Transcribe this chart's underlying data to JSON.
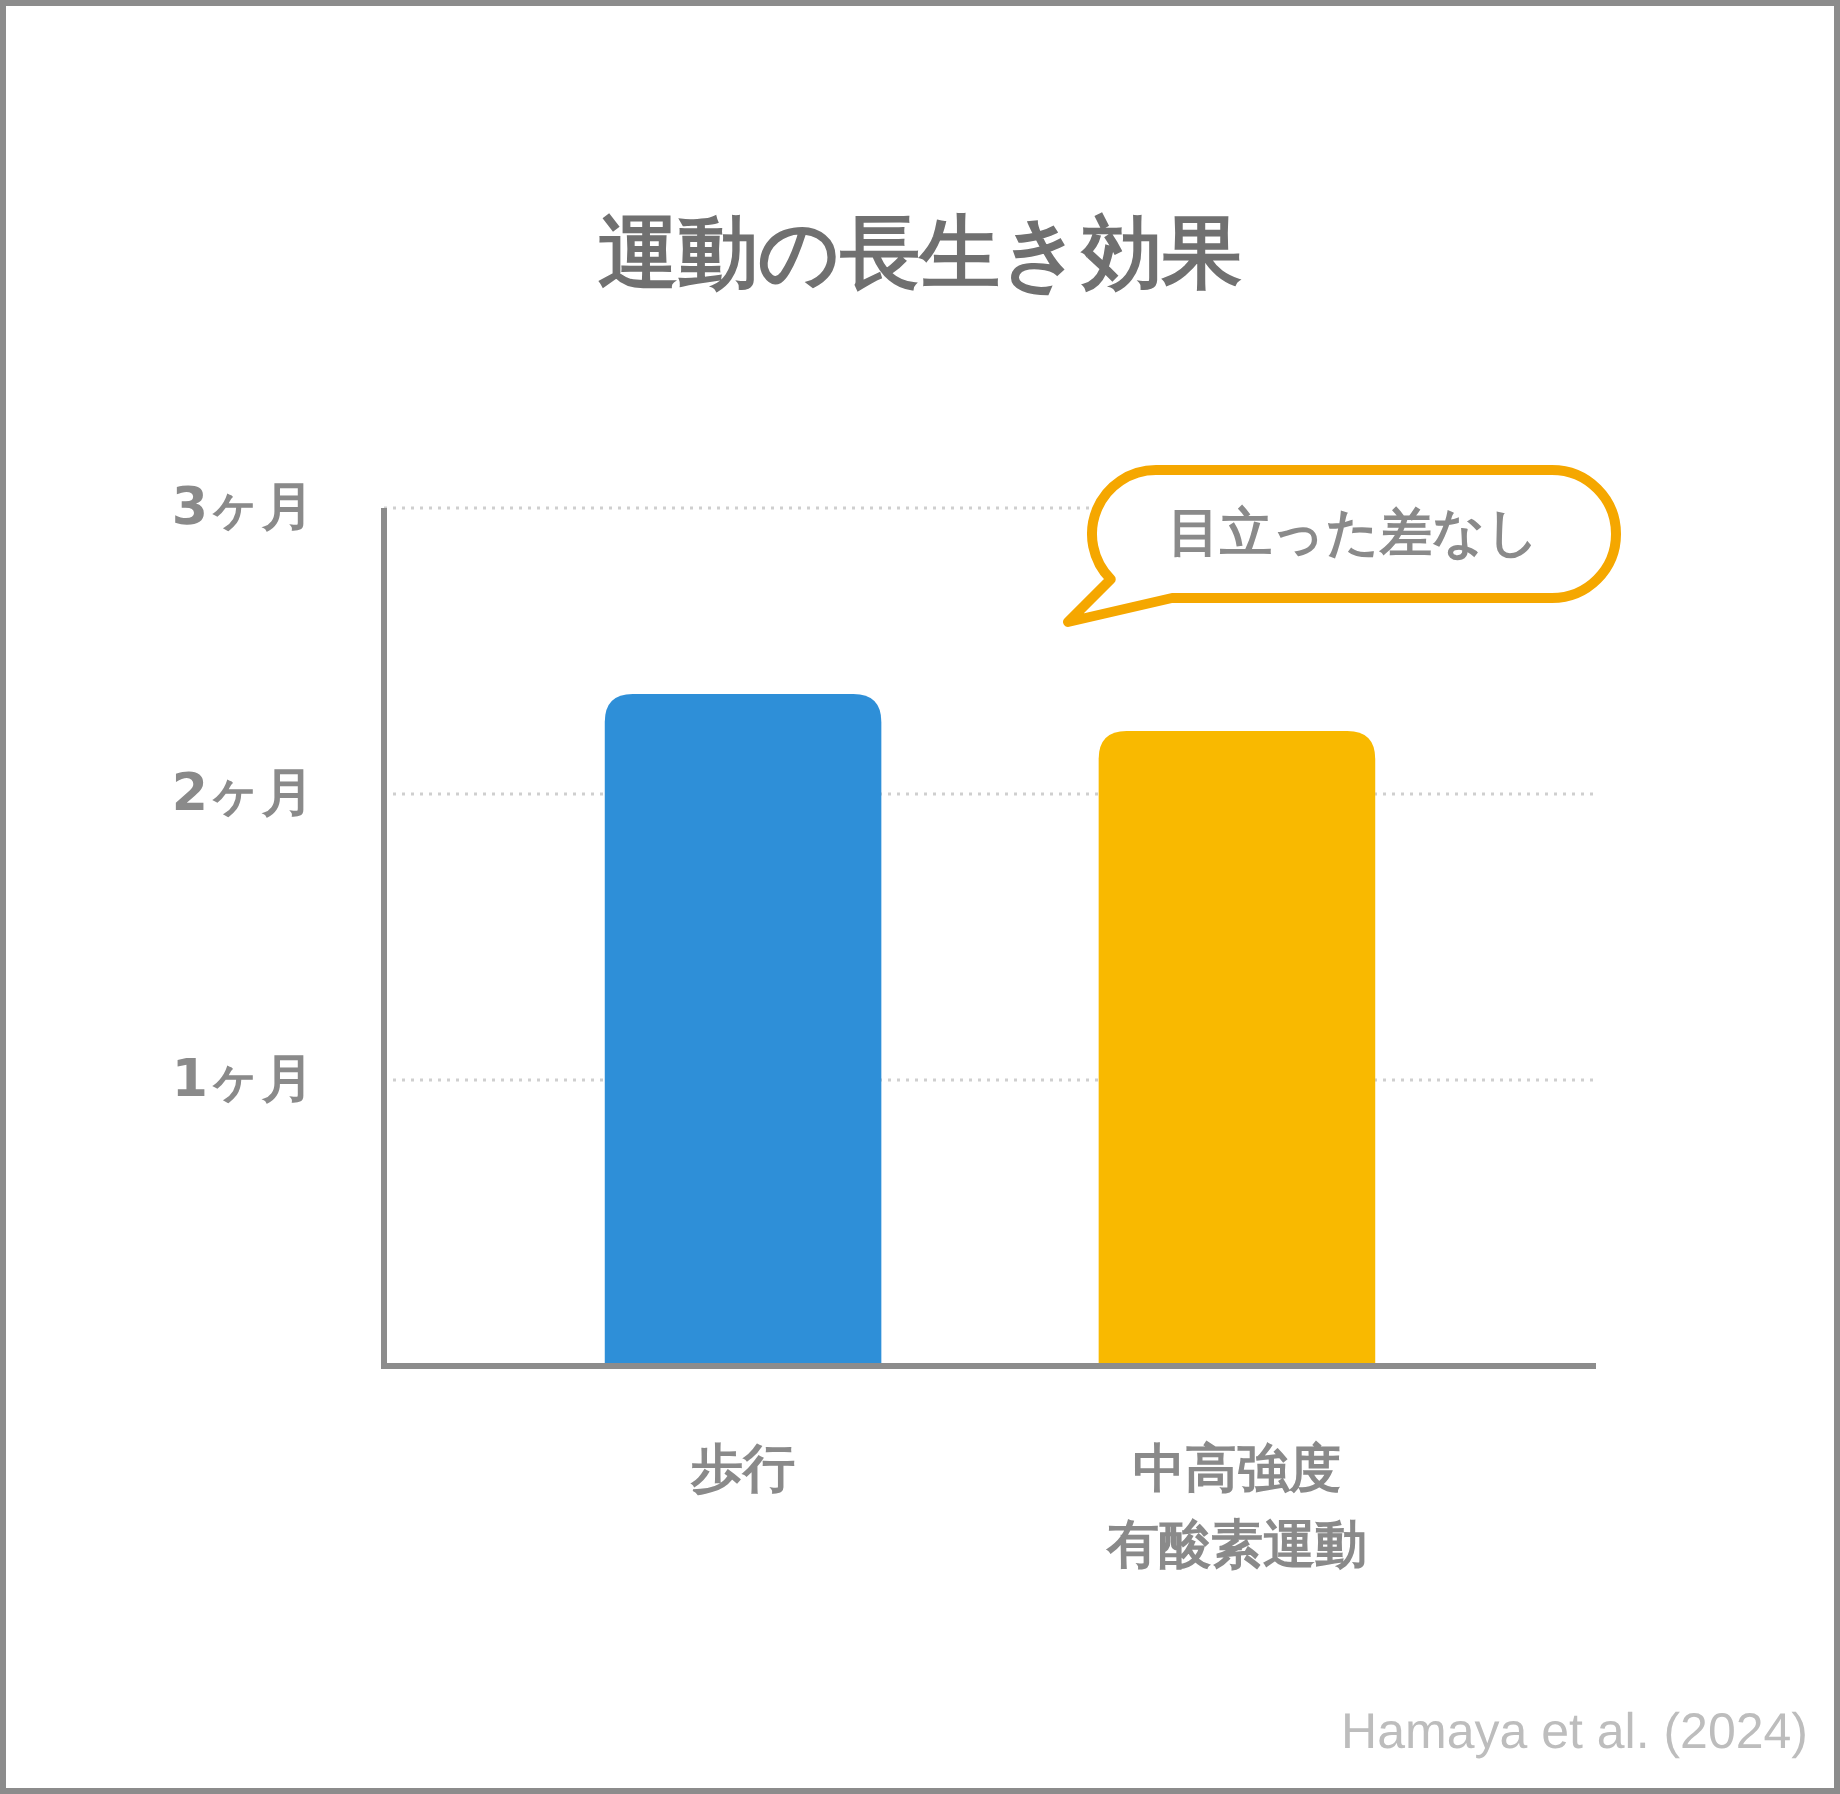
{
  "chart_data": {
    "type": "bar",
    "title": "運動の長生き効果",
    "categories": [
      "歩行",
      "中高強度有酸素運動"
    ],
    "values": [
      2.35,
      2.22
    ],
    "colors": [
      "#2e8fd8",
      "#f9b900"
    ],
    "ylim": [
      0,
      3
    ],
    "yticks": [
      {
        "value": 1,
        "label": "1ヶ月"
      },
      {
        "value": 2,
        "label": "2ヶ月"
      },
      {
        "value": 3,
        "label": "3ヶ月"
      }
    ],
    "grid": "y",
    "annotations": [
      "目立った差なし",
      "Hamaya et al. (2024)"
    ]
  }
}
